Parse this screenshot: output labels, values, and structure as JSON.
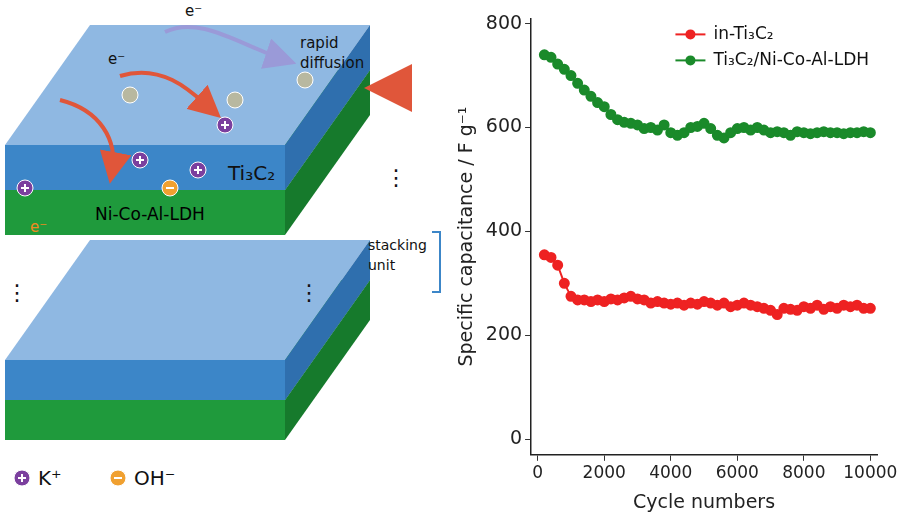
{
  "diagram": {
    "layers": {
      "mxene": "Ti₃C₂",
      "ldh": "Ni-Co-Al-LDH"
    },
    "electron": "e⁻",
    "diffusion": "rapid diffusion",
    "stack_label": "stacking unit",
    "ellipsis": "⋮",
    "ions": [
      {
        "label": "K⁺",
        "color": "#7b3f9e"
      },
      {
        "label": "OH⁻",
        "color": "#f0a030"
      }
    ]
  },
  "chart_data": {
    "type": "line",
    "x_label": "Cycle numbers",
    "y_label": "Specific capacitance / F g⁻¹",
    "x": [
      200,
      400,
      600,
      800,
      1000,
      1200,
      1400,
      1600,
      1800,
      2000,
      2200,
      2400,
      2600,
      2800,
      3000,
      3200,
      3400,
      3600,
      3800,
      4000,
      4200,
      4400,
      4600,
      4800,
      5000,
      5200,
      5400,
      5600,
      5800,
      6000,
      6200,
      6400,
      6600,
      6800,
      7000,
      7200,
      7400,
      7600,
      7800,
      8000,
      8200,
      8400,
      8600,
      8800,
      9000,
      9200,
      9400,
      9600,
      9800,
      10000
    ],
    "series": [
      {
        "name": "in-Ti₃C₂",
        "color": "#ee2222",
        "marker": "circle",
        "line_style": "solid",
        "values": [
          355,
          350,
          335,
          300,
          275,
          268,
          268,
          265,
          268,
          265,
          270,
          268,
          272,
          275,
          270,
          268,
          262,
          265,
          262,
          260,
          262,
          258,
          262,
          260,
          265,
          262,
          258,
          262,
          255,
          258,
          262,
          258,
          255,
          252,
          248,
          240,
          252,
          250,
          248,
          255,
          252,
          258,
          250,
          255,
          252,
          258,
          255,
          258,
          252,
          252
        ]
      },
      {
        "name": "Ti₃C₂/Ni-Co-Al-LDH",
        "color": "#1a8a2a",
        "marker": "circle",
        "line_style": "solid",
        "values": [
          740,
          735,
          722,
          712,
          700,
          685,
          672,
          660,
          648,
          640,
          625,
          615,
          610,
          608,
          605,
          598,
          600,
          595,
          605,
          590,
          585,
          590,
          600,
          602,
          608,
          598,
          585,
          580,
          590,
          598,
          600,
          595,
          600,
          595,
          590,
          592,
          590,
          585,
          592,
          590,
          588,
          590,
          592,
          590,
          590,
          588,
          590,
          590,
          592,
          590
        ]
      }
    ],
    "xlim": [
      -200,
      10200
    ],
    "xticks": [
      0,
      2000,
      4000,
      6000,
      8000,
      10000
    ],
    "ylim": [
      -30,
      810
    ],
    "yticks": [
      0,
      200,
      400,
      600,
      800
    ],
    "grid": false,
    "legend": "upper right"
  }
}
